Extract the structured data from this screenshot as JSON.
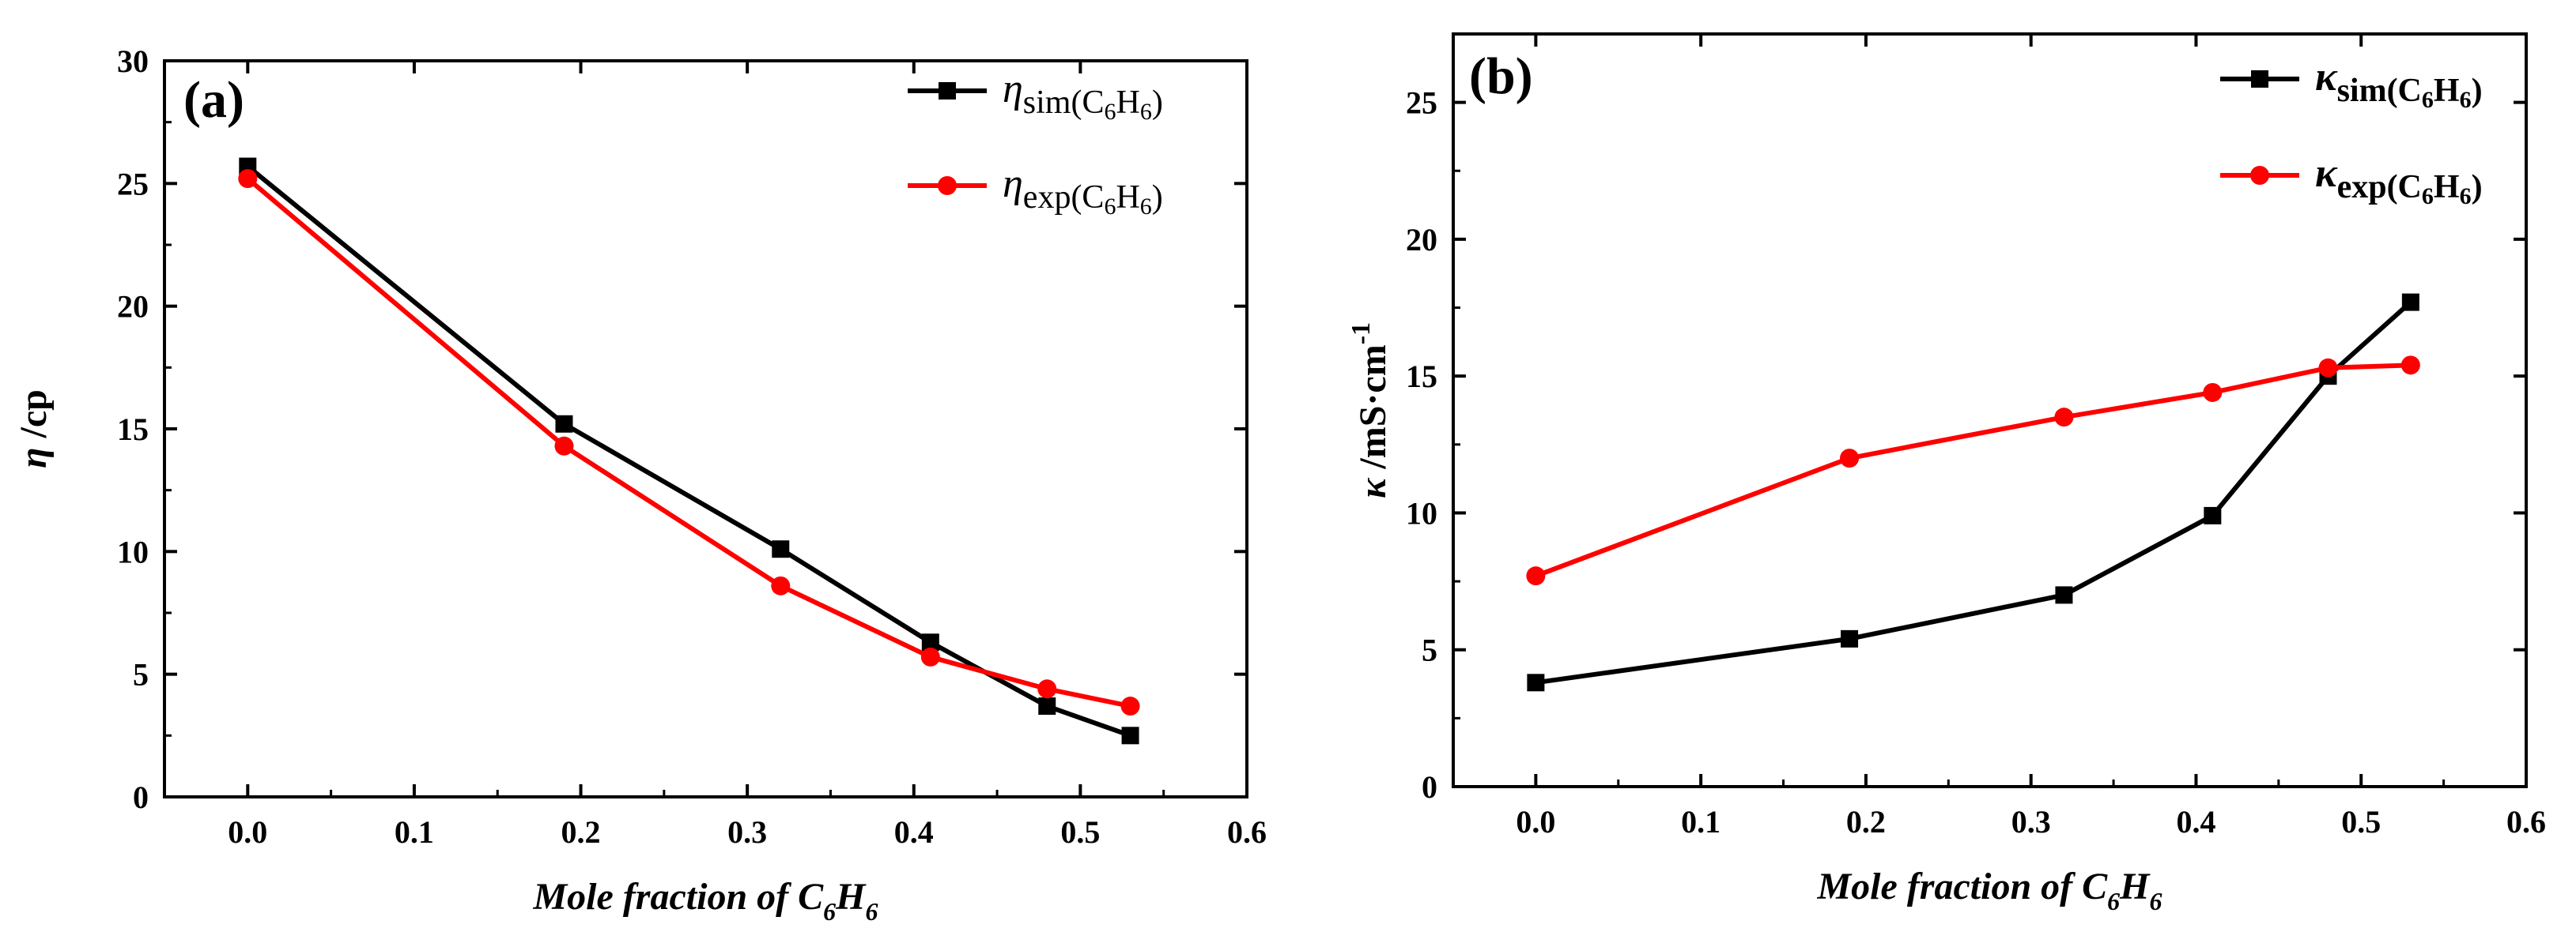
{
  "chart_data": [
    {
      "type": "line",
      "panel_label": "(a)",
      "title": "",
      "xlabel": {
        "main": "Mole fraction of C",
        "sub1": "6",
        "mid": "H",
        "sub2": "6"
      },
      "ylabel": {
        "symbol": "η",
        "rest": " /cp"
      },
      "xlim": [
        -0.05,
        0.6
      ],
      "ylim": [
        0,
        30
      ],
      "x_ticks": [
        "0.0",
        "0.1",
        "0.2",
        "0.3",
        "0.4",
        "0.5",
        "0.6"
      ],
      "y_ticks": [
        "0",
        "5",
        "10",
        "15",
        "20",
        "25",
        "30"
      ],
      "legend_position": "top-right",
      "series": [
        {
          "name": "η_sim(C6H6)",
          "legend": {
            "sym": "η",
            "sub": "sim(C",
            "n1": "6",
            "h": "H",
            "n2": "6",
            "close": ")"
          },
          "color": "#000000",
          "marker": "square",
          "x": [
            0.0,
            0.19,
            0.32,
            0.41,
            0.48,
            0.53
          ],
          "values": [
            25.7,
            15.2,
            10.1,
            6.3,
            3.7,
            2.5
          ]
        },
        {
          "name": "η_exp(C6H6)",
          "legend": {
            "sym": "η",
            "sub": "exp(C",
            "n1": "6",
            "h": "H",
            "n2": "6",
            "close": ")"
          },
          "color": "#ff0000",
          "marker": "circle",
          "x": [
            0.0,
            0.19,
            0.32,
            0.41,
            0.48,
            0.53
          ],
          "values": [
            25.2,
            14.3,
            8.6,
            5.7,
            4.4,
            3.7
          ]
        }
      ]
    },
    {
      "type": "line",
      "panel_label": "(b)",
      "title": "",
      "xlabel": {
        "main": "Mole fraction of C",
        "sub1": "6",
        "mid": "H",
        "sub2": "6"
      },
      "ylabel": {
        "symbol": "κ",
        "rest": " /mS·cm",
        "sup": "-1"
      },
      "xlim": [
        -0.05,
        0.6
      ],
      "ylim": [
        0,
        27.5
      ],
      "x_ticks": [
        "0.0",
        "0.1",
        "0.2",
        "0.3",
        "0.4",
        "0.5",
        "0.6"
      ],
      "y_ticks": [
        "0",
        "5",
        "10",
        "15",
        "20",
        "25"
      ],
      "legend_position": "top-right",
      "series": [
        {
          "name": "κ_sim(C6H6)",
          "legend": {
            "sym": "κ",
            "sub": "sim(C",
            "n1": "6",
            "h": "H",
            "n2": "6",
            "close": ")"
          },
          "color": "#000000",
          "marker": "square",
          "x": [
            0.0,
            0.19,
            0.32,
            0.41,
            0.48,
            0.53
          ],
          "values": [
            3.8,
            5.4,
            7.0,
            9.9,
            15.0,
            17.7
          ]
        },
        {
          "name": "κ_exp(C6H6)",
          "legend": {
            "sym": "κ",
            "sub": "exp(C",
            "n1": "6",
            "h": "H",
            "n2": "6",
            "close": ")"
          },
          "color": "#ff0000",
          "marker": "circle",
          "x": [
            0.0,
            0.19,
            0.32,
            0.41,
            0.48,
            0.53
          ],
          "values": [
            7.7,
            12.0,
            13.5,
            14.4,
            15.3,
            15.4
          ]
        }
      ]
    }
  ]
}
